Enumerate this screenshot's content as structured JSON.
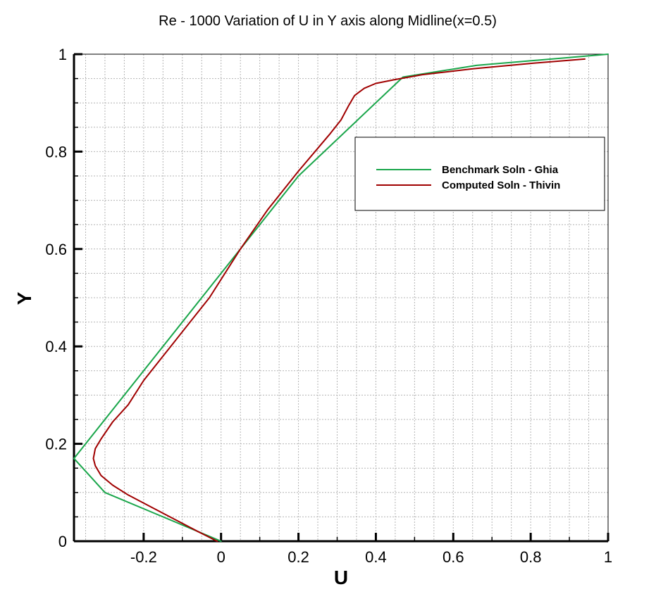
{
  "chart_data": {
    "type": "line",
    "title": "Re - 1000 Variation of U in Y axis along Midline(x=0.5)",
    "xlabel": "U",
    "ylabel": "Y",
    "xlim": [
      -0.38,
      1.0
    ],
    "ylim": [
      0,
      1
    ],
    "x_ticks": [
      -0.2,
      0,
      0.2,
      0.4,
      0.6,
      0.8,
      1
    ],
    "x_tick_labels": [
      "-0.2",
      "0",
      "0.2",
      "0.4",
      "0.6",
      "0.8",
      "1"
    ],
    "y_ticks": [
      0,
      0.2,
      0.4,
      0.6,
      0.8,
      1
    ],
    "y_tick_labels": [
      "0",
      "0.2",
      "0.4",
      "0.6",
      "0.8",
      "1"
    ],
    "grid": true,
    "legend_position": "top-right",
    "series": [
      {
        "name": "Benchmark Soln - Ghia",
        "color": "#1aa64b",
        "points": [
          [
            0.0,
            0.0
          ],
          [
            -0.18,
            0.06
          ],
          [
            -0.3,
            0.1
          ],
          [
            -0.38,
            0.17
          ],
          [
            -0.25,
            0.3
          ],
          [
            0.0,
            0.55
          ],
          [
            0.2,
            0.75
          ],
          [
            0.47,
            0.953
          ],
          [
            0.66,
            0.977
          ],
          [
            1.0,
            1.0
          ]
        ]
      },
      {
        "name": "Computed Soln - Thivin",
        "color": "#a00000",
        "points": [
          [
            -0.01,
            0.0
          ],
          [
            -0.06,
            0.02
          ],
          [
            -0.12,
            0.045
          ],
          [
            -0.18,
            0.07
          ],
          [
            -0.24,
            0.095
          ],
          [
            -0.28,
            0.115
          ],
          [
            -0.31,
            0.135
          ],
          [
            -0.325,
            0.155
          ],
          [
            -0.33,
            0.17
          ],
          [
            -0.325,
            0.19
          ],
          [
            -0.31,
            0.21
          ],
          [
            -0.28,
            0.245
          ],
          [
            -0.24,
            0.28
          ],
          [
            -0.2,
            0.33
          ],
          [
            -0.13,
            0.4
          ],
          [
            -0.03,
            0.5
          ],
          [
            0.05,
            0.6
          ],
          [
            0.12,
            0.68
          ],
          [
            0.2,
            0.76
          ],
          [
            0.28,
            0.835
          ],
          [
            0.31,
            0.865
          ],
          [
            0.33,
            0.895
          ],
          [
            0.345,
            0.915
          ],
          [
            0.37,
            0.93
          ],
          [
            0.4,
            0.94
          ],
          [
            0.45,
            0.948
          ],
          [
            0.52,
            0.958
          ],
          [
            0.65,
            0.97
          ],
          [
            0.8,
            0.981
          ],
          [
            0.94,
            0.99
          ]
        ]
      }
    ]
  }
}
